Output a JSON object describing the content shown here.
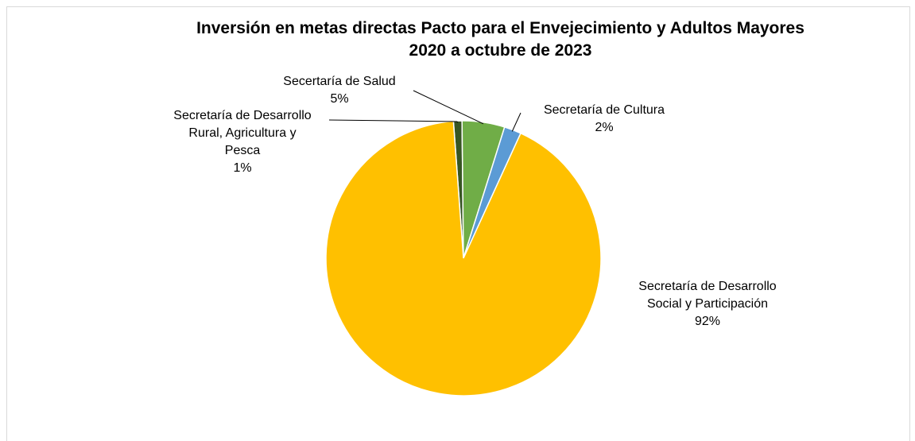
{
  "chart_data": {
    "type": "pie",
    "title": "Inversión en metas directas Pacto para el Envejecimiento y Adultos Mayores",
    "subtitle": "2020 a octubre de 2023",
    "slices": [
      {
        "label": "Secretaría de Desarrollo Rural, Agricultura y Pesca",
        "label_lines": [
          "Secretaría de Desarrollo",
          "Rural, Agricultura y",
          "Pesca"
        ],
        "value": 1,
        "value_label": "1%",
        "color": "#375623"
      },
      {
        "label": "Secertaría de Salud",
        "label_lines": [
          "Secertaría de Salud"
        ],
        "value": 5,
        "value_label": "5%",
        "color": "#70ad47"
      },
      {
        "label": "Secretaría de Cultura",
        "label_lines": [
          "Secretaría de Cultura"
        ],
        "value": 2,
        "value_label": "2%",
        "color": "#5b9bd5"
      },
      {
        "label": "Secretaría de Desarrollo Social y Participación",
        "label_lines": [
          "Secretaría de Desarrollo",
          "Social y Participación"
        ],
        "value": 92,
        "value_label": "92%",
        "color": "#ffc000"
      }
    ],
    "legend": "none"
  }
}
